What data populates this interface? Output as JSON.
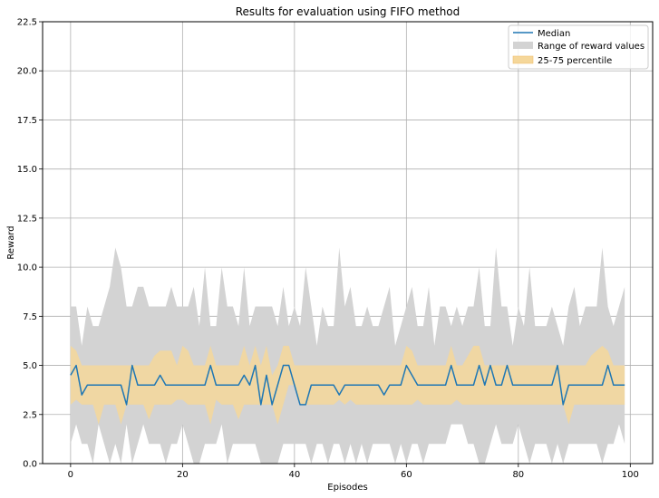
{
  "chart_data": {
    "type": "area",
    "title": "Results for evaluation using FIFO method",
    "xlabel": "Episodes",
    "ylabel": "Reward",
    "xlim": [
      -5,
      104
    ],
    "ylim": [
      0,
      22.5
    ],
    "xticks": [
      0,
      20,
      40,
      60,
      80,
      100
    ],
    "yticks": [
      0.0,
      2.5,
      5.0,
      7.5,
      10.0,
      12.5,
      15.0,
      17.5,
      20.0,
      22.5
    ],
    "grid": true,
    "legend_position": "top-right",
    "colors": {
      "median": "#1f77b4",
      "range": "#d3d3d3",
      "percentile": "#f5d79a"
    },
    "series": [
      {
        "name": "Median",
        "kind": "line",
        "values": [
          4.5,
          5.0,
          3.5,
          4.0,
          4.0,
          4.0,
          4.0,
          4.0,
          4.0,
          4.0,
          3.0,
          5.0,
          4.0,
          4.0,
          4.0,
          4.0,
          4.5,
          4.0,
          4.0,
          4.0,
          4.0,
          4.0,
          4.0,
          4.0,
          4.0,
          5.0,
          4.0,
          4.0,
          4.0,
          4.0,
          4.0,
          4.5,
          4.0,
          5.0,
          3.0,
          4.5,
          3.0,
          4.0,
          5.0,
          5.0,
          4.0,
          3.0,
          3.0,
          4.0,
          4.0,
          4.0,
          4.0,
          4.0,
          3.5,
          4.0,
          4.0,
          4.0,
          4.0,
          4.0,
          4.0,
          4.0,
          3.5,
          4.0,
          4.0,
          4.0,
          5.0,
          4.5,
          4.0,
          4.0,
          4.0,
          4.0,
          4.0,
          4.0,
          5.0,
          4.0,
          4.0,
          4.0,
          4.0,
          5.0,
          4.0,
          5.0,
          4.0,
          4.0,
          5.0,
          4.0,
          4.0,
          4.0,
          4.0,
          4.0,
          4.0,
          4.0,
          4.0,
          5.0,
          3.0,
          4.0,
          4.0,
          4.0,
          4.0,
          4.0,
          4.0,
          4.0,
          5.0,
          4.0,
          4.0,
          4.0
        ]
      },
      {
        "name": "Range of reward values",
        "kind": "band",
        "upper": [
          8,
          8,
          6,
          8,
          7,
          7,
          8,
          9,
          11,
          10,
          8,
          8,
          9,
          9,
          8,
          8,
          8,
          8,
          9,
          8,
          8,
          8,
          9,
          7,
          10,
          7,
          7,
          10,
          8,
          8,
          7,
          10,
          7,
          8,
          8,
          8,
          8,
          7,
          9,
          7,
          8,
          7,
          10,
          8,
          6,
          8,
          7,
          7,
          11,
          8,
          9,
          7,
          7,
          8,
          7,
          7,
          8,
          9,
          6,
          7,
          8,
          9,
          7,
          7,
          9,
          6,
          8,
          8,
          7,
          8,
          7,
          8,
          8,
          10,
          7,
          7,
          11,
          8,
          8,
          6,
          8,
          7,
          10,
          7,
          7,
          7,
          8,
          7,
          6,
          8,
          9,
          7,
          8,
          8,
          8,
          11,
          8,
          7,
          8,
          9
        ],
        "lower": [
          1,
          2,
          1,
          1,
          0,
          2,
          1,
          0,
          1,
          0,
          2,
          0,
          1,
          2,
          1,
          1,
          1,
          0,
          1,
          1,
          2,
          1,
          0,
          0,
          1,
          1,
          1,
          2,
          0,
          1,
          1,
          1,
          1,
          1,
          0,
          0,
          0,
          0,
          1,
          1,
          1,
          1,
          1,
          0,
          1,
          1,
          0,
          1,
          1,
          0,
          1,
          0,
          1,
          0,
          1,
          1,
          1,
          1,
          0,
          1,
          0,
          1,
          1,
          0,
          1,
          1,
          1,
          1,
          2,
          2,
          2,
          1,
          1,
          0,
          0,
          1,
          2,
          1,
          1,
          1,
          2,
          1,
          0,
          1,
          1,
          1,
          0,
          1,
          0,
          1,
          1,
          1,
          1,
          1,
          1,
          0,
          1,
          1,
          2,
          1
        ]
      },
      {
        "name": "25-75 percentile",
        "kind": "band",
        "upper": [
          6,
          5.75,
          5,
          5,
          5,
          5,
          5,
          5,
          5,
          5,
          5,
          5,
          5,
          5,
          5,
          5.5,
          5.75,
          5.75,
          5.75,
          5,
          6,
          5.75,
          5,
          5,
          5,
          6,
          5,
          5,
          5,
          5,
          5,
          6,
          5,
          6,
          5,
          6,
          4.5,
          5,
          6,
          6,
          5,
          5,
          5,
          5,
          5,
          5,
          5,
          5,
          5,
          5,
          5,
          5,
          5,
          5,
          5,
          5,
          5,
          5,
          5,
          5,
          6,
          5.75,
          5,
          5,
          5,
          5,
          5,
          5,
          6,
          5,
          5,
          5.5,
          6,
          6,
          5,
          5,
          5,
          5,
          5,
          5,
          5,
          5,
          5,
          5,
          5,
          5,
          5,
          5,
          5,
          5,
          5,
          5,
          5,
          5.5,
          5.75,
          6,
          5.75,
          5,
          5,
          5
        ],
        "lower": [
          3,
          3.25,
          3,
          3,
          3,
          2,
          3,
          3,
          3,
          2,
          3,
          3,
          3,
          3,
          2.25,
          3,
          3,
          3,
          3,
          3.25,
          3.25,
          3,
          3,
          3,
          3,
          2,
          3.25,
          3,
          3,
          3,
          2.25,
          3,
          3,
          3,
          3,
          3,
          3,
          2,
          3,
          4,
          4,
          3,
          3,
          3,
          3,
          3,
          3,
          3,
          3.25,
          3,
          3.25,
          3,
          3,
          3,
          3,
          3,
          3,
          3,
          3,
          3,
          3,
          3,
          3.25,
          3,
          3,
          3,
          3,
          3,
          3,
          3.25,
          3,
          3,
          3,
          3,
          3,
          3,
          3,
          3,
          3,
          3,
          3,
          3,
          3,
          3,
          3,
          3,
          3,
          3,
          3,
          2,
          3,
          3,
          3,
          3,
          3,
          3,
          3,
          3,
          3,
          3
        ]
      }
    ]
  }
}
